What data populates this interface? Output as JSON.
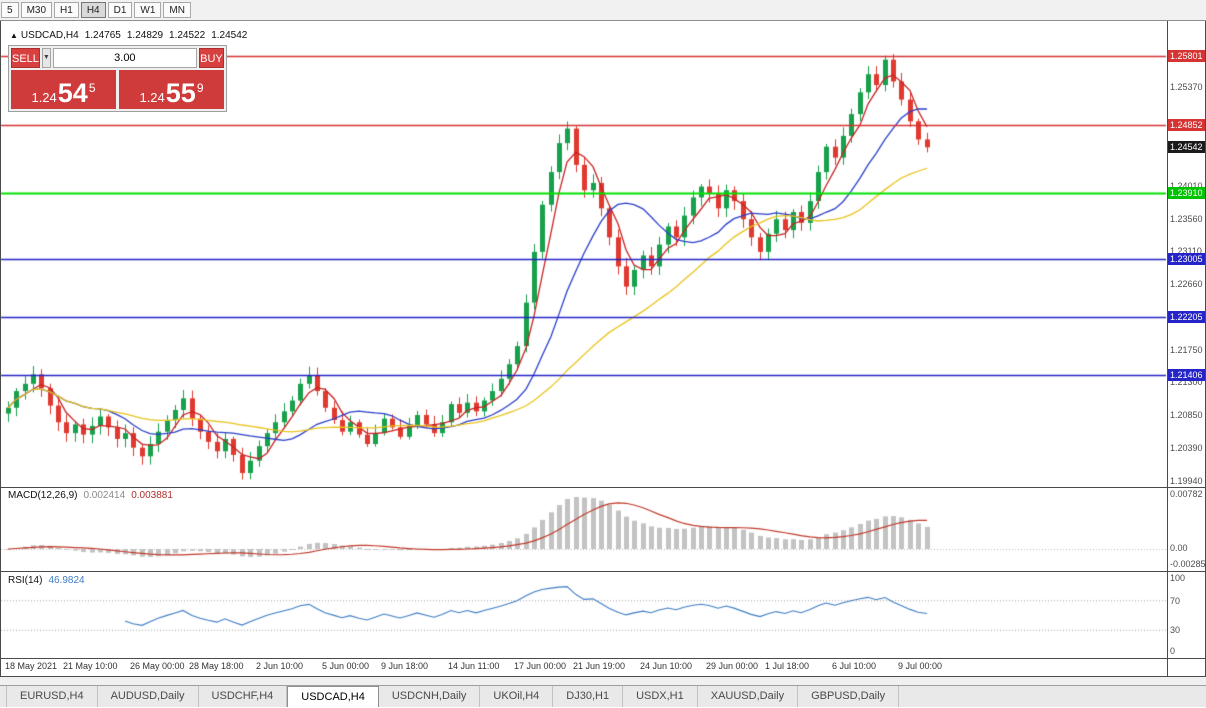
{
  "toolbar": {
    "timeframes": [
      {
        "label": "5",
        "active": false
      },
      {
        "label": "M30",
        "active": false
      },
      {
        "label": "H1",
        "active": false
      },
      {
        "label": "H4",
        "active": true
      },
      {
        "label": "D1",
        "active": false
      },
      {
        "label": "W1",
        "active": false
      },
      {
        "label": "MN",
        "active": false
      }
    ]
  },
  "chart_header": {
    "collapse_icon": "▲",
    "symbol": "USDCAD,H4",
    "open": "1.24765",
    "high": "1.24829",
    "low": "1.24522",
    "close": "1.24542"
  },
  "trade_panel": {
    "sell_label": "SELL",
    "buy_label": "BUY",
    "dropdown_icon": "▼",
    "volume": "3.00",
    "sell_price": {
      "base": "1.24",
      "pips": "54",
      "point": "5"
    },
    "buy_price": {
      "base": "1.24",
      "pips": "55",
      "point": "9"
    }
  },
  "indicators": {
    "macd": {
      "label": "MACD(12,26,9)",
      "value_main": "0.002414",
      "value_signal": "0.003881",
      "axis": [
        "0.00782",
        "0.00",
        "-0.00285"
      ]
    },
    "rsi": {
      "label": "RSI(14)",
      "value": "46.9824",
      "axis": [
        "100",
        "70",
        "30",
        "0"
      ]
    }
  },
  "price_axis": {
    "gray_labels": [
      {
        "text": "1.25370",
        "price": 1.2537
      },
      {
        "text": "1.24010",
        "price": 1.2401
      },
      {
        "text": "1.23560",
        "price": 1.2356
      },
      {
        "text": "1.23110",
        "price": 1.2311
      },
      {
        "text": "1.22660",
        "price": 1.2266
      },
      {
        "text": "1.21750",
        "price": 1.2175
      },
      {
        "text": "1.21300",
        "price": 1.213
      },
      {
        "text": "1.20850",
        "price": 1.2085
      },
      {
        "text": "1.20390",
        "price": 1.2039
      },
      {
        "text": "1.19940",
        "price": 1.1994
      }
    ]
  },
  "time_axis": {
    "labels": [
      {
        "text": "18 May 2021",
        "bar": 0
      },
      {
        "text": "21 May 10:00",
        "bar": 7
      },
      {
        "text": "26 May 00:00",
        "bar": 15
      },
      {
        "text": "28 May 18:00",
        "bar": 22
      },
      {
        "text": "2 Jun 10:00",
        "bar": 30
      },
      {
        "text": "5 Jun 00:00",
        "bar": 38
      },
      {
        "text": "9 Jun 18:00",
        "bar": 45
      },
      {
        "text": "14 Jun 11:00",
        "bar": 53
      },
      {
        "text": "17 Jun 00:00",
        "bar": 61
      },
      {
        "text": "21 Jun 19:00",
        "bar": 68
      },
      {
        "text": "24 Jun 10:00",
        "bar": 76
      },
      {
        "text": "29 Jun 00:00",
        "bar": 84
      },
      {
        "text": "1 Jul 18:00",
        "bar": 91
      },
      {
        "text": "6 Jul 10:00",
        "bar": 99
      },
      {
        "text": "9 Jul 00:00",
        "bar": 107
      }
    ]
  },
  "tabs": {
    "active_index": 3,
    "items": [
      {
        "label": "EURUSD,H4"
      },
      {
        "label": "AUDUSD,Daily"
      },
      {
        "label": "USDCHF,H4"
      },
      {
        "label": "USDCAD,H4"
      },
      {
        "label": "USDCNH,Daily"
      },
      {
        "label": "UKOil,H4"
      },
      {
        "label": "DJ30,H1"
      },
      {
        "label": "USDX,H1"
      },
      {
        "label": "XAUUSD,Daily"
      },
      {
        "label": "GBPUSD,Daily"
      }
    ]
  },
  "chart_data": {
    "type": "candlestick",
    "symbol": "USDCAD",
    "timeframe": "H4",
    "ylim": [
      1.1987,
      1.2627
    ],
    "axis_anchors": {
      "price_a": 1.25801,
      "price_b": 1.1994
    },
    "last_close": 1.24542,
    "closes": [
      1.2095,
      1.2118,
      1.2128,
      1.2141,
      1.2122,
      1.2098,
      1.2075,
      1.206,
      1.2072,
      1.2058,
      1.207,
      1.2083,
      1.2068,
      1.2052,
      1.206,
      1.204,
      1.2028,
      1.2045,
      1.2062,
      1.2078,
      1.2092,
      1.2108,
      1.208,
      1.2062,
      1.2048,
      1.2035,
      1.2052,
      1.203,
      1.2005,
      1.2022,
      1.2042,
      1.206,
      1.2075,
      1.209,
      1.2105,
      1.2128,
      1.214,
      1.2118,
      1.2095,
      1.2078,
      1.2062,
      1.2075,
      1.2058,
      1.2045,
      1.206,
      1.208,
      1.2068,
      1.2055,
      1.207,
      1.2085,
      1.2072,
      1.206,
      1.2075,
      1.21,
      1.2088,
      1.2102,
      1.209,
      1.2105,
      1.2118,
      1.2135,
      1.2155,
      1.218,
      1.224,
      1.231,
      1.2375,
      1.242,
      1.246,
      1.248,
      1.243,
      1.2395,
      1.2405,
      1.237,
      1.233,
      1.229,
      1.2262,
      1.2285,
      1.2305,
      1.229,
      1.232,
      1.2345,
      1.233,
      1.236,
      1.2385,
      1.24,
      1.239,
      1.237,
      1.2395,
      1.238,
      1.2355,
      1.233,
      1.231,
      1.2335,
      1.2355,
      1.234,
      1.2365,
      1.235,
      1.238,
      1.242,
      1.2455,
      1.244,
      1.247,
      1.25,
      1.253,
      1.2555,
      1.254,
      1.2575,
      1.2545,
      1.252,
      1.249,
      1.2465,
      1.24542
    ],
    "candle_up_color": "#18a14c",
    "candle_down_color": "#e0392f",
    "moving_averages": [
      {
        "name": "fast",
        "period": 4,
        "color": "#c82222"
      },
      {
        "name": "medium",
        "period": 12,
        "color": "#2a3fc8"
      },
      {
        "name": "slow",
        "period": 30,
        "color": "#e9c31c"
      }
    ],
    "levels": [
      {
        "text": "1.25801",
        "price": 1.25801,
        "bg": "#d63333",
        "line": "#d63333",
        "lw": 1.4
      },
      {
        "text": "1.24852",
        "price": 1.24852,
        "bg": "#d63333",
        "line": "#d63333",
        "lw": 1.4
      },
      {
        "text": "1.24542",
        "price": 1.24542,
        "bg": "#1b1b1b",
        "line": null,
        "lw": 0
      },
      {
        "text": "1.23910",
        "price": 1.2391,
        "bg": "#00c300",
        "line": "#00e000",
        "lw": 2.2
      },
      {
        "text": "1.23005",
        "price": 1.23005,
        "bg": "#2424c8",
        "line": "#2424c8",
        "lw": 1.6
      },
      {
        "text": "1.22205",
        "price": 1.22205,
        "bg": "#2424c8",
        "line": "#2424c8",
        "lw": 1.6
      },
      {
        "text": "1.21406",
        "price": 1.21406,
        "bg": "#2424c8",
        "line": "#2424c8",
        "lw": 1.6
      }
    ],
    "macd": {
      "fast": 12,
      "slow": 26,
      "signal": 9,
      "histogram_color": "#c3c3c3",
      "signal_color": "#c03a2b"
    },
    "rsi": {
      "period": 14,
      "color": "#3f7cc4",
      "levels": [
        70,
        30
      ]
    }
  }
}
